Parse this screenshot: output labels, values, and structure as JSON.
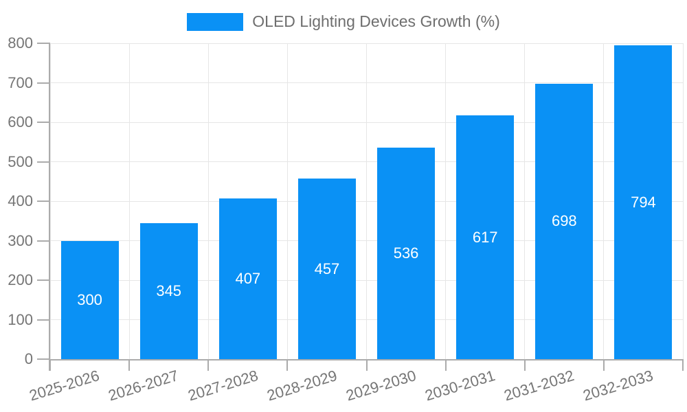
{
  "chart_data": {
    "type": "bar",
    "title": "OLED Lighting Devices Growth (%)",
    "legend_position": "top",
    "categories": [
      "2025-2026",
      "2026-2027",
      "2027-2028",
      "2028-2029",
      "2029-2030",
      "2030-2031",
      "2031-2032",
      "2032-2033"
    ],
    "values": [
      300,
      345,
      407,
      457,
      536,
      617,
      698,
      794
    ],
    "value_labels": [
      "300",
      "345",
      "407",
      "457",
      "536",
      "617",
      "698",
      "794"
    ],
    "y_ticks": [
      0,
      100,
      200,
      300,
      400,
      500,
      600,
      700,
      800
    ],
    "ylim": [
      0,
      800
    ],
    "xlabel": "",
    "ylabel": "",
    "grid": true,
    "x_label_rotation_deg": -17
  },
  "colors": {
    "bar": "#0A91F5",
    "value_label": "#ffffff",
    "grid": "#e6e6e6",
    "axis": "#ababab",
    "tick_label": "#757575",
    "legend_text": "#6e6e6e",
    "background": "#ffffff"
  }
}
